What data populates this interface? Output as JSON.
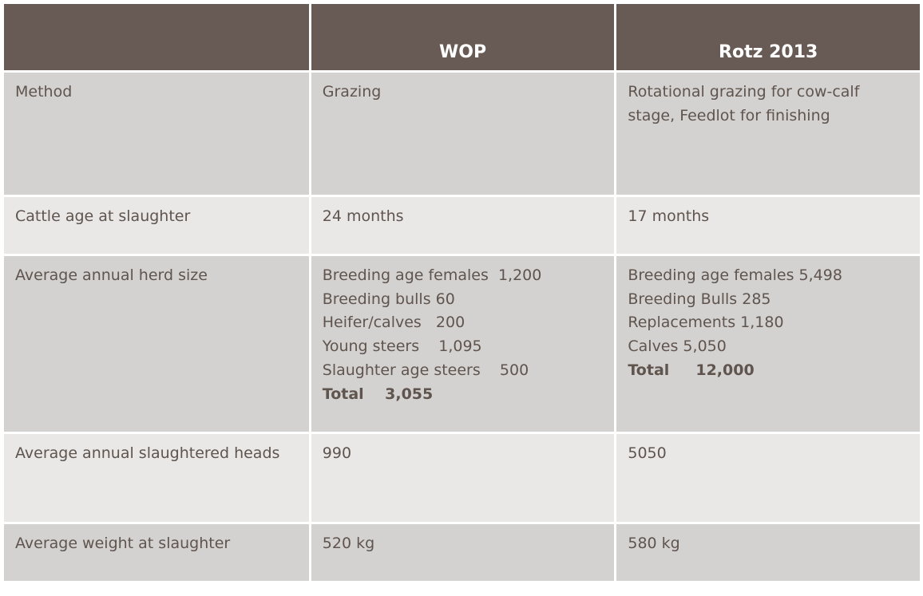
{
  "header": [
    "",
    "WOP",
    "Rotz 2013"
  ],
  "rows": [
    {
      "label": "Method",
      "wop": [
        "Grazing"
      ],
      "rotz": [
        "Rotational grazing for cow-calf",
        "stage, Feedlot for finishing"
      ]
    },
    {
      "label": "Cattle age at slaughter",
      "wop": [
        "24 months"
      ],
      "rotz": [
        "17 months"
      ]
    },
    {
      "label": "Average annual herd size",
      "wop": [
        "Breeding age females  1,200",
        "Breeding bulls 60",
        "Heifer/calves   200",
        "Young steers    1,095",
        "Slaughter age steers    500"
      ],
      "wop_total": "Total    3,055",
      "rotz": [
        "Breeding age females 5,498",
        "Breeding Bulls 285",
        "Replacements 1,180",
        "Calves 5,050"
      ],
      "rotz_total": "Total     12,000"
    },
    {
      "label": "Average annual slaughtered heads",
      "wop": [
        "990"
      ],
      "rotz": [
        "5050"
      ]
    },
    {
      "label": "Average weight at slaughter",
      "wop": [
        "520 kg"
      ],
      "rotz": [
        "580 kg"
      ]
    }
  ],
  "colors": {
    "header": "#685b55",
    "row_dark": "#d4d2d0",
    "row_light": "#e9e8e7",
    "text": "#5f544e"
  }
}
